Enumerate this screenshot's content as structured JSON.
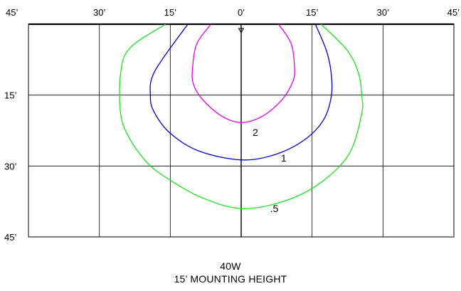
{
  "chart_data": {
    "type": "isofootcandle-plot",
    "x_ticks": [
      "45’",
      "30’",
      "15’",
      "0’",
      "15’",
      "30’",
      "45’"
    ],
    "y_ticks": [
      "15’",
      "30’",
      "45’"
    ],
    "x_range_ft": [
      -45,
      45
    ],
    "y_range_ft": [
      0,
      45
    ],
    "grid": true,
    "contours": [
      {
        "label": "2",
        "color": "#e600e6",
        "points": [
          [
            -6.4,
            0
          ],
          [
            -9.4,
            4.2
          ],
          [
            -10.3,
            9.5
          ],
          [
            -10.1,
            12.7
          ],
          [
            -8.2,
            15.9
          ],
          [
            -4.2,
            19.4
          ],
          [
            0,
            20.8
          ],
          [
            4.6,
            19.4
          ],
          [
            8.7,
            15.9
          ],
          [
            10.9,
            12.2
          ],
          [
            11.3,
            9.5
          ],
          [
            10.6,
            4.2
          ],
          [
            7.9,
            0
          ]
        ]
      },
      {
        "label": "1",
        "color": "#0000cc",
        "points": [
          [
            -11.3,
            0
          ],
          [
            -18.3,
            10.0
          ],
          [
            -19.2,
            15.2
          ],
          [
            -18.4,
            18.6
          ],
          [
            -15.1,
            23.0
          ],
          [
            -9.0,
            26.8
          ],
          [
            0,
            28.7
          ],
          [
            7.4,
            27.5
          ],
          [
            13.6,
            24.3
          ],
          [
            17.5,
            20.1
          ],
          [
            19.1,
            15.0
          ],
          [
            19.0,
            10.0
          ],
          [
            18.0,
            5.5
          ],
          [
            15.7,
            0
          ]
        ]
      },
      {
        "label": ".5",
        "color": "#22dd22",
        "points": [
          [
            -16.0,
            0
          ],
          [
            -23.5,
            5.0
          ],
          [
            -25.5,
            10.3
          ],
          [
            -25.5,
            19.0
          ],
          [
            -23.6,
            24.2
          ],
          [
            -19.7,
            29.5
          ],
          [
            -15.0,
            33.0
          ],
          [
            -8.3,
            36.7
          ],
          [
            0,
            39.0
          ],
          [
            9.2,
            37.4
          ],
          [
            16.7,
            33.6
          ],
          [
            22.8,
            27.5
          ],
          [
            25.5,
            19.0
          ],
          [
            25.5,
            15.0
          ],
          [
            24.8,
            10.3
          ],
          [
            22.4,
            5.5
          ],
          [
            16.9,
            0
          ]
        ]
      }
    ],
    "label_positions_ft": [
      {
        "contour": "2",
        "x": 3.0,
        "y": 22.9
      },
      {
        "contour": "1",
        "x": 9.0,
        "y": 28.3
      },
      {
        "contour": ".5",
        "x": 7.0,
        "y": 39.0
      }
    ]
  },
  "caption": {
    "line1": "40W",
    "line2": "15’ MOUNTING HEIGHT"
  }
}
